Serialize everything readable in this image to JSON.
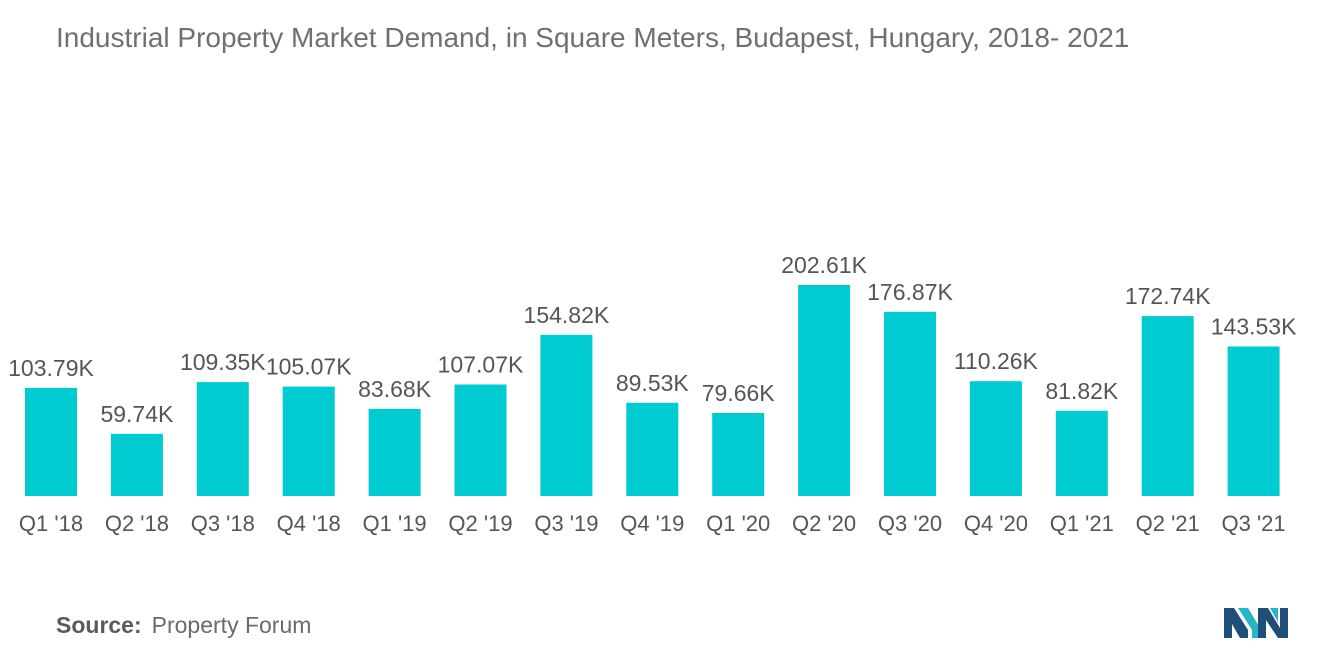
{
  "header": {
    "title": "Industrial Property Market Demand, in Square Meters, Budapest, Hungary, 2018- 2021"
  },
  "footer": {
    "source_label": "Source:",
    "source_value": "Property Forum"
  },
  "colors": {
    "bar": "#00CBD1",
    "text": "#555555",
    "title": "#707070"
  },
  "chart_data": {
    "type": "bar",
    "title": "Industrial Property Market Demand, in Square Meters, Budapest, Hungary, 2018- 2021",
    "xlabel": "",
    "ylabel": "",
    "categories": [
      "Q1 '18",
      "Q2 '18",
      "Q3 '18",
      "Q4 '18",
      "Q1 '19",
      "Q2 '19",
      "Q3 '19",
      "Q4 '19",
      "Q1 '20",
      "Q2 '20",
      "Q3 '20",
      "Q4 '20",
      "Q1 '21",
      "Q2 '21",
      "Q3 '21"
    ],
    "values": [
      103.79,
      59.74,
      109.35,
      105.07,
      83.68,
      107.07,
      154.82,
      89.53,
      79.66,
      202.61,
      176.87,
      110.26,
      81.82,
      172.74,
      143.53
    ],
    "labels": [
      "103.79K",
      "59.74K",
      "109.35K",
      "105.07K",
      "83.68K",
      "107.07K",
      "154.82K",
      "89.53K",
      "79.66K",
      "202.61K",
      "176.87K",
      "110.26K",
      "81.82K",
      "172.74K",
      "143.53K"
    ],
    "unit": "thousand square meters",
    "ylim": [
      0,
      202.61
    ],
    "grid": false,
    "legend": "none"
  }
}
